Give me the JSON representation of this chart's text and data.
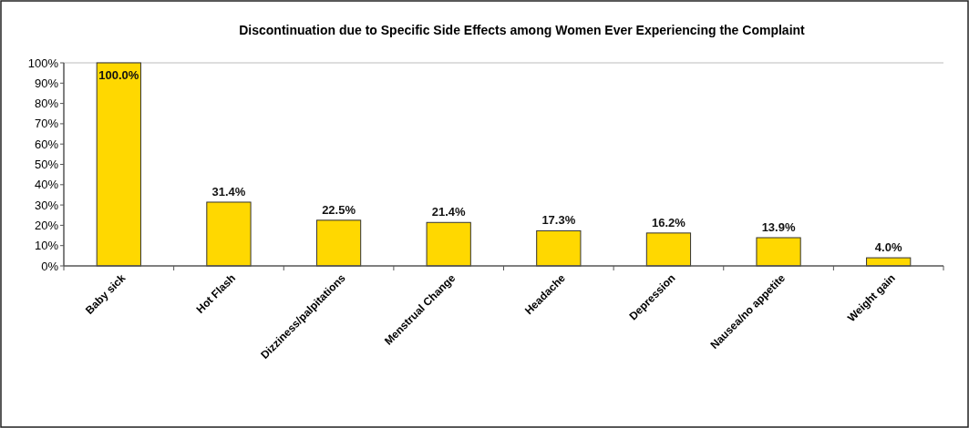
{
  "chart_data": {
    "type": "bar",
    "title": "Discontinuation due to Specific Side Effects  among  Women Ever Experiencing the  Complaint",
    "categories": [
      "Baby sick",
      "Hot Flash",
      "Dizziness/palpitations",
      "Menstrual Change",
      "Headache",
      "Depression",
      "Nausea/no appetite",
      "Weight gain"
    ],
    "values": [
      100.0,
      31.4,
      22.5,
      21.4,
      17.3,
      16.2,
      13.9,
      4.0
    ],
    "value_labels": [
      "100.0%",
      "31.4%",
      "22.5%",
      "21.4%",
      "17.3%",
      "16.2%",
      "13.9%",
      "4.0%"
    ],
    "color": "#ffd800",
    "ylim": [
      0,
      100
    ],
    "yticks": [
      {
        "value": 0,
        "label": "0%"
      },
      {
        "value": 10,
        "label": "10%"
      },
      {
        "value": 20,
        "label": "20%"
      },
      {
        "value": 30,
        "label": "30%"
      },
      {
        "value": 40,
        "label": "40%"
      },
      {
        "value": 50,
        "label": "50%"
      },
      {
        "value": 60,
        "label": "60%"
      },
      {
        "value": 70,
        "label": "70%"
      },
      {
        "value": 80,
        "label": "80%"
      },
      {
        "value": 90,
        "label": "90%"
      },
      {
        "value": 100,
        "label": "100%"
      }
    ],
    "grid": false
  }
}
